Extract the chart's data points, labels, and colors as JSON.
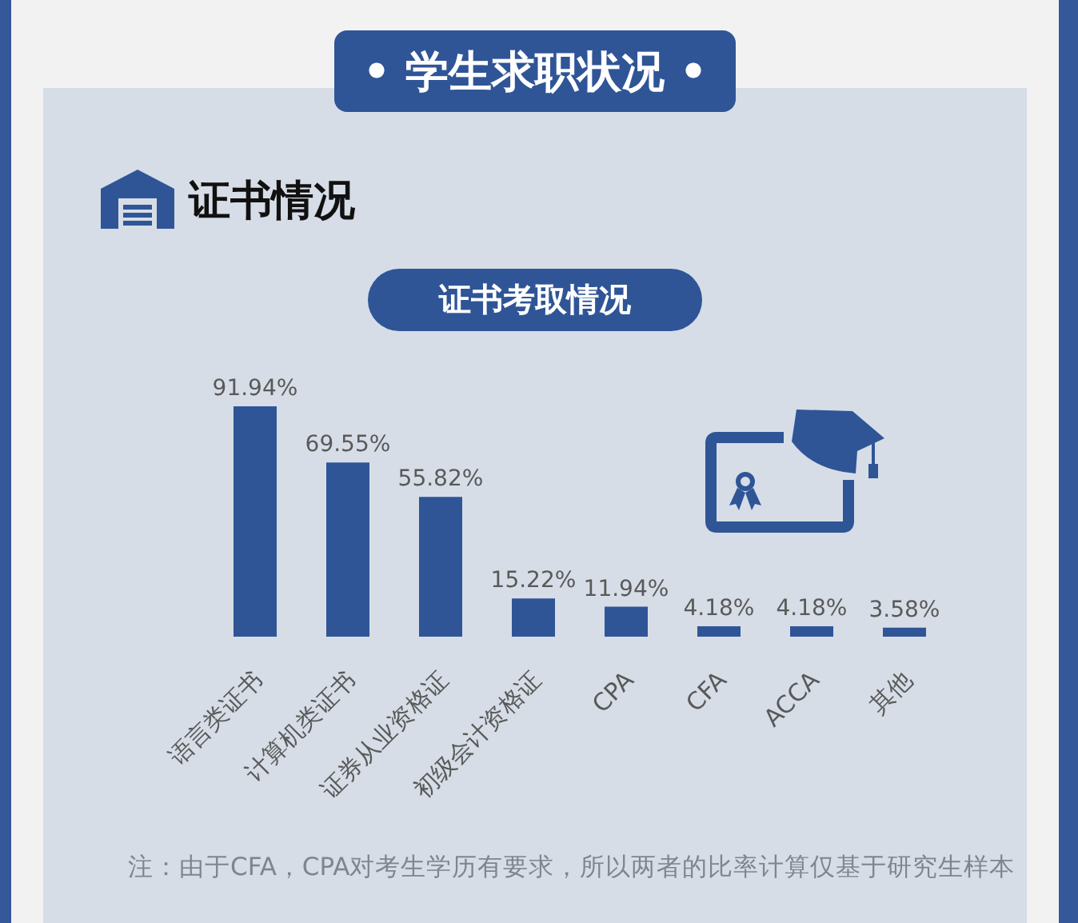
{
  "chart_data": {
    "type": "bar",
    "title": "• 学生求职状况 •",
    "subtitle": "证书情况",
    "annotations": [
      "证书考取情况",
      "注：由于CFA，CPA对考生学历有要求，所以两者的比率计算仅基于研究生样本"
    ],
    "categories": [
      "语言类证书",
      "计算机类证书",
      "证券从业资格证",
      "初级会计资格证",
      "CPA",
      "CFA",
      "ACCA",
      "其他"
    ],
    "values": [
      91.94,
      69.55,
      55.82,
      15.22,
      11.94,
      4.18,
      4.18,
      3.58
    ],
    "color": "#2f5597",
    "value_labels": [
      "91.94%",
      "69.55%",
      "55.82%",
      "15.22%",
      "11.94%",
      "4.18%",
      "4.18%",
      "3.58%"
    ],
    "tick_labels": "x"
  }
}
